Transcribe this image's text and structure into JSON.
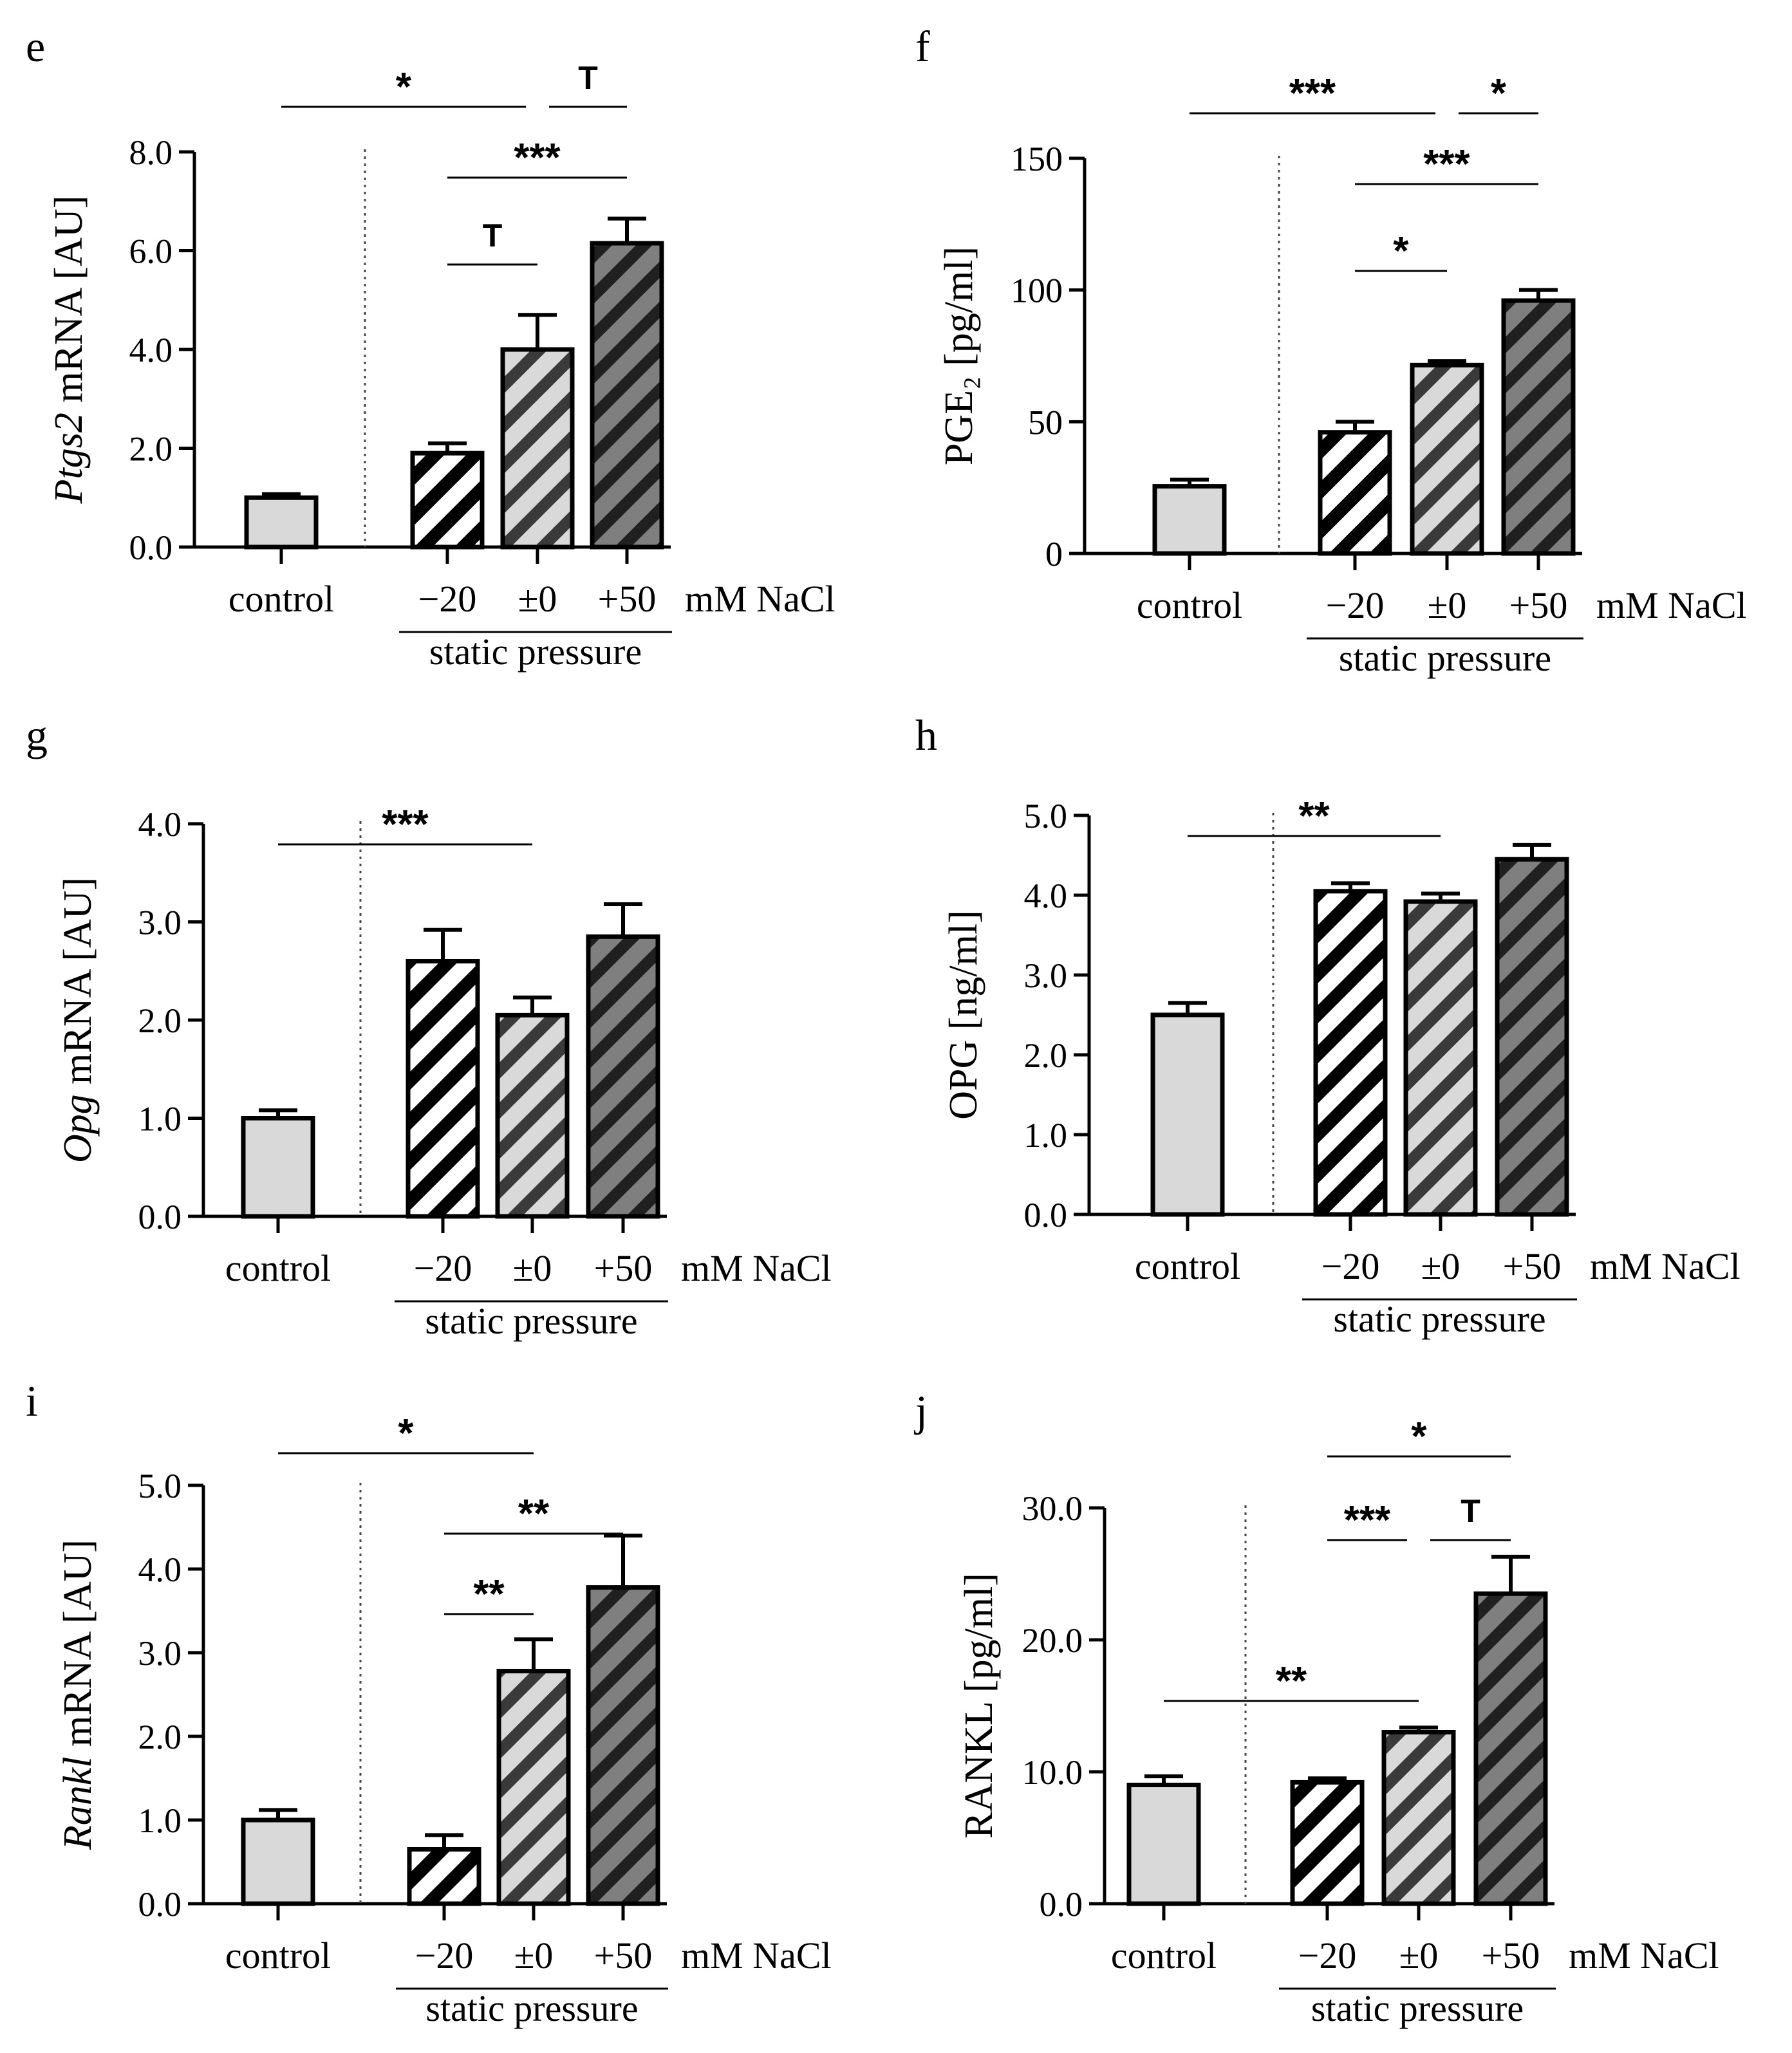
{
  "chart_data": [
    {
      "panel": "e",
      "type": "bar",
      "ylabel_italic": "Ptgs2",
      "ylabel_rest": " mRNA [AU]",
      "ylim": [
        0,
        8
      ],
      "yticks": [
        "0.0",
        "2.0",
        "4.0",
        "6.0",
        "8.0"
      ],
      "categories": [
        "control",
        "−20",
        "±0",
        "+50"
      ],
      "values": [
        1.0,
        1.9,
        4.0,
        6.15
      ],
      "errors": [
        0.07,
        0.2,
        0.7,
        0.5
      ],
      "unit_label": "mM NaCl",
      "group_label": "static pressure",
      "significance": [
        {
          "from": 0,
          "to": 2,
          "label": "*",
          "level": 3
        },
        {
          "from": 2,
          "to": 3,
          "label": "T",
          "level": 3
        },
        {
          "from": 1,
          "to": 3,
          "label": "***",
          "level": 2
        },
        {
          "from": 1,
          "to": 2,
          "label": "T",
          "level": 1
        }
      ]
    },
    {
      "panel": "f",
      "type": "bar",
      "ylabel_italic": "",
      "ylabel_rest": "PGE₂ [pg/ml]",
      "ylim": [
        0,
        150
      ],
      "yticks": [
        "0",
        "50",
        "100",
        "150"
      ],
      "categories": [
        "control",
        "−20",
        "±0",
        "+50"
      ],
      "values": [
        25.5,
        46,
        71.5,
        96
      ],
      "errors": [
        2.5,
        4,
        1.5,
        4
      ],
      "unit_label": "mM NaCl",
      "group_label": "static pressure",
      "significance": [
        {
          "from": 0,
          "to": 2,
          "label": "***",
          "level": 3
        },
        {
          "from": 2,
          "to": 3,
          "label": "*",
          "level": 3
        },
        {
          "from": 1,
          "to": 3,
          "label": "***",
          "level": 2
        },
        {
          "from": 1,
          "to": 2,
          "label": "*",
          "level": 1
        }
      ]
    },
    {
      "panel": "g",
      "type": "bar",
      "ylabel_italic": "Opg",
      "ylabel_rest": " mRNA [AU]",
      "ylim": [
        0,
        4
      ],
      "yticks": [
        "0.0",
        "1.0",
        "2.0",
        "3.0",
        "4.0"
      ],
      "categories": [
        "control",
        "−20",
        "±0",
        "+50"
      ],
      "values": [
        1.0,
        2.6,
        2.05,
        2.85
      ],
      "errors": [
        0.08,
        0.32,
        0.18,
        0.33
      ],
      "unit_label": "mM NaCl",
      "group_label": "static pressure",
      "significance": [
        {
          "from": 0,
          "to": 2,
          "label": "***",
          "level": 3
        }
      ]
    },
    {
      "panel": "h",
      "type": "bar",
      "ylabel_italic": "",
      "ylabel_rest": "OPG [ng/ml]",
      "ylim": [
        0,
        5
      ],
      "yticks": [
        "0.0",
        "1.0",
        "2.0",
        "3.0",
        "4.0",
        "5.0"
      ],
      "categories": [
        "control",
        "−20",
        "±0",
        "+50"
      ],
      "values": [
        2.5,
        4.05,
        3.92,
        4.45
      ],
      "errors": [
        0.15,
        0.1,
        0.1,
        0.18
      ],
      "unit_label": "mM NaCl",
      "group_label": "static pressure",
      "significance": [
        {
          "from": 0,
          "to": 2,
          "label": "**",
          "level": 3
        }
      ]
    },
    {
      "panel": "i",
      "type": "bar",
      "ylabel_italic": "Rankl",
      "ylabel_rest": " mRNA [AU]",
      "ylim": [
        0,
        5
      ],
      "yticks": [
        "0.0",
        "1.0",
        "2.0",
        "3.0",
        "4.0",
        "5.0"
      ],
      "categories": [
        "control",
        "−20",
        "±0",
        "+50"
      ],
      "values": [
        1.0,
        0.65,
        2.78,
        3.78
      ],
      "errors": [
        0.12,
        0.17,
        0.38,
        0.62
      ],
      "unit_label": "mM NaCl",
      "group_label": "static pressure",
      "significance": [
        {
          "from": 0,
          "to": 2,
          "label": "*",
          "level": 3
        },
        {
          "from": 1,
          "to": 3,
          "label": "**",
          "level": 2
        },
        {
          "from": 1,
          "to": 2,
          "label": "**",
          "level": 1
        }
      ]
    },
    {
      "panel": "j",
      "type": "bar",
      "ylabel_italic": "",
      "ylabel_rest": "RANKL [pg/ml]",
      "ylim": [
        0,
        30
      ],
      "yticks": [
        "0.0",
        "10.0",
        "20.0",
        "30.0"
      ],
      "categories": [
        "control",
        "−20",
        "±0",
        "+50"
      ],
      "values": [
        9.0,
        9.2,
        13.0,
        23.5
      ],
      "errors": [
        0.65,
        0.3,
        0.35,
        2.8
      ],
      "unit_label": "mM NaCl",
      "group_label": "static pressure",
      "significance": [
        {
          "from": 1,
          "to": 3,
          "label": "*",
          "level": 3
        },
        {
          "from": 1,
          "to": 2,
          "label": "***",
          "level": 2
        },
        {
          "from": 2,
          "to": 3,
          "label": "T",
          "level": 2
        },
        {
          "from": 0,
          "to": 2,
          "label": "**",
          "level": 1
        }
      ]
    }
  ],
  "colors": {
    "control_fill": "#d9d9d9",
    "stripe_minus20": "#000000",
    "stripe_pm0": "#3a3a3a",
    "stripe_plus50": "#202020",
    "base_minus20": "#ffffff",
    "base_pm0": "#d9d9d9",
    "base_plus50": "#7f7f7f"
  }
}
